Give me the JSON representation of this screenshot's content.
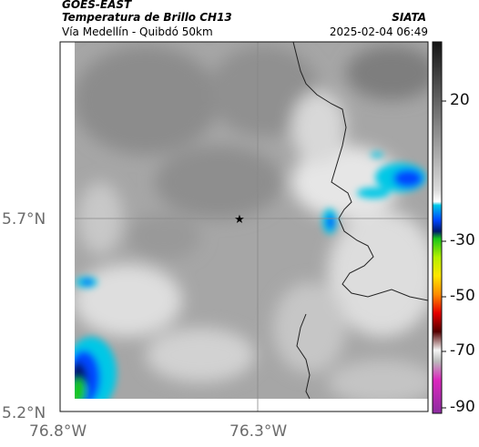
{
  "header": {
    "satellite": "GOES-EAST",
    "product": "Temperatura de Brillo CH13",
    "area": "Vía Medellín - Quibdó 50km",
    "organization": "SIATA",
    "timestamp": "2025-02-04 06:49"
  },
  "map": {
    "lat_labels": [
      "5.7°N",
      "5.2°N"
    ],
    "lon_labels": [
      "76.8°W",
      "76.3°W"
    ],
    "gridlines": true,
    "marker": "star-icon"
  },
  "colorbar": {
    "tick_labels": [
      "20",
      "-30",
      "-50",
      "-70",
      "-90"
    ],
    "colors": {
      "dark_top": "#151515",
      "gray_mid": "#9a9a9a",
      "light_gray": "#d9d9d9",
      "cyan": "#00c8e6",
      "blue": "#0046ff",
      "navy": "#001a6e",
      "green": "#19c619",
      "lime": "#b4f000",
      "yellow": "#ffe600",
      "orange": "#ff8c00",
      "red": "#e60000",
      "dark_red": "#550000",
      "white": "#f5f5f5",
      "magenta": "#dc28be",
      "purple": "#8c2ca0"
    }
  }
}
